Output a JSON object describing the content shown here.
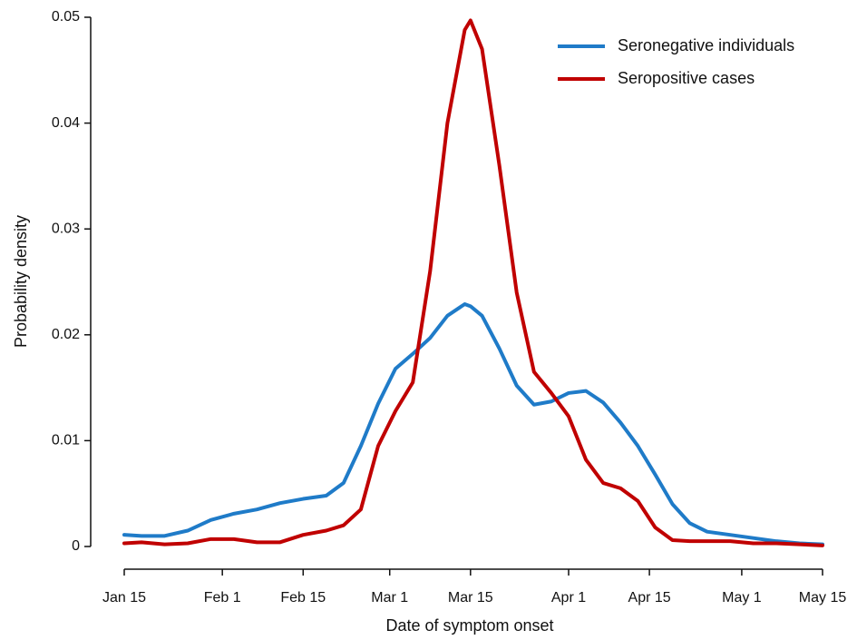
{
  "chart_data": {
    "type": "line",
    "x_label": "Date of symptom onset",
    "y_label": "Probability density",
    "x": [
      15,
      18,
      22,
      26,
      30,
      34,
      38,
      42,
      46,
      50,
      53,
      56,
      59,
      62,
      65,
      68,
      71,
      74,
      75,
      77,
      80,
      83,
      86,
      89,
      92,
      95,
      98,
      101,
      104,
      107,
      110,
      113,
      116,
      120,
      124,
      128,
      132,
      136
    ],
    "series": [
      {
        "name": "Seronegative individuals",
        "color": "#1f7bc8",
        "values": [
          0.0011,
          0.001,
          0.001,
          0.0015,
          0.0025,
          0.0031,
          0.0035,
          0.0041,
          0.0045,
          0.0048,
          0.006,
          0.0095,
          0.0135,
          0.0168,
          0.0182,
          0.0197,
          0.0218,
          0.0229,
          0.0227,
          0.0218,
          0.0187,
          0.0152,
          0.0134,
          0.0137,
          0.0145,
          0.0147,
          0.0136,
          0.0117,
          0.0095,
          0.0068,
          0.004,
          0.0022,
          0.0014,
          0.0011,
          0.0008,
          0.0005,
          0.0003,
          0.0002
        ]
      },
      {
        "name": "Seropositive cases",
        "color": "#c00000",
        "values": [
          0.0003,
          0.0004,
          0.0002,
          0.0003,
          0.0007,
          0.0007,
          0.0004,
          0.0004,
          0.0011,
          0.0015,
          0.002,
          0.0035,
          0.0095,
          0.0128,
          0.0155,
          0.026,
          0.04,
          0.0488,
          0.0497,
          0.047,
          0.036,
          0.024,
          0.0165,
          0.0145,
          0.0123,
          0.0082,
          0.006,
          0.0055,
          0.0043,
          0.0018,
          0.0006,
          0.0005,
          0.0005,
          0.0005,
          0.0003,
          0.0003,
          0.0002,
          0.0001
        ]
      }
    ],
    "xlim": [
      15,
      136
    ],
    "xticks": [
      {
        "value": 15,
        "label": "Jan 15"
      },
      {
        "value": 32,
        "label": "Feb 1"
      },
      {
        "value": 46,
        "label": "Feb 15"
      },
      {
        "value": 61,
        "label": "Mar 1"
      },
      {
        "value": 75,
        "label": "Mar 15"
      },
      {
        "value": 92,
        "label": "Apr 1"
      },
      {
        "value": 106,
        "label": "Apr 15"
      },
      {
        "value": 122,
        "label": "May 1"
      },
      {
        "value": 136,
        "label": "May 15"
      }
    ],
    "ylim": [
      0,
      0.05
    ],
    "yticks": [
      0,
      0.01,
      0.02,
      0.03,
      0.04,
      0.05
    ],
    "legend": "top-right"
  }
}
